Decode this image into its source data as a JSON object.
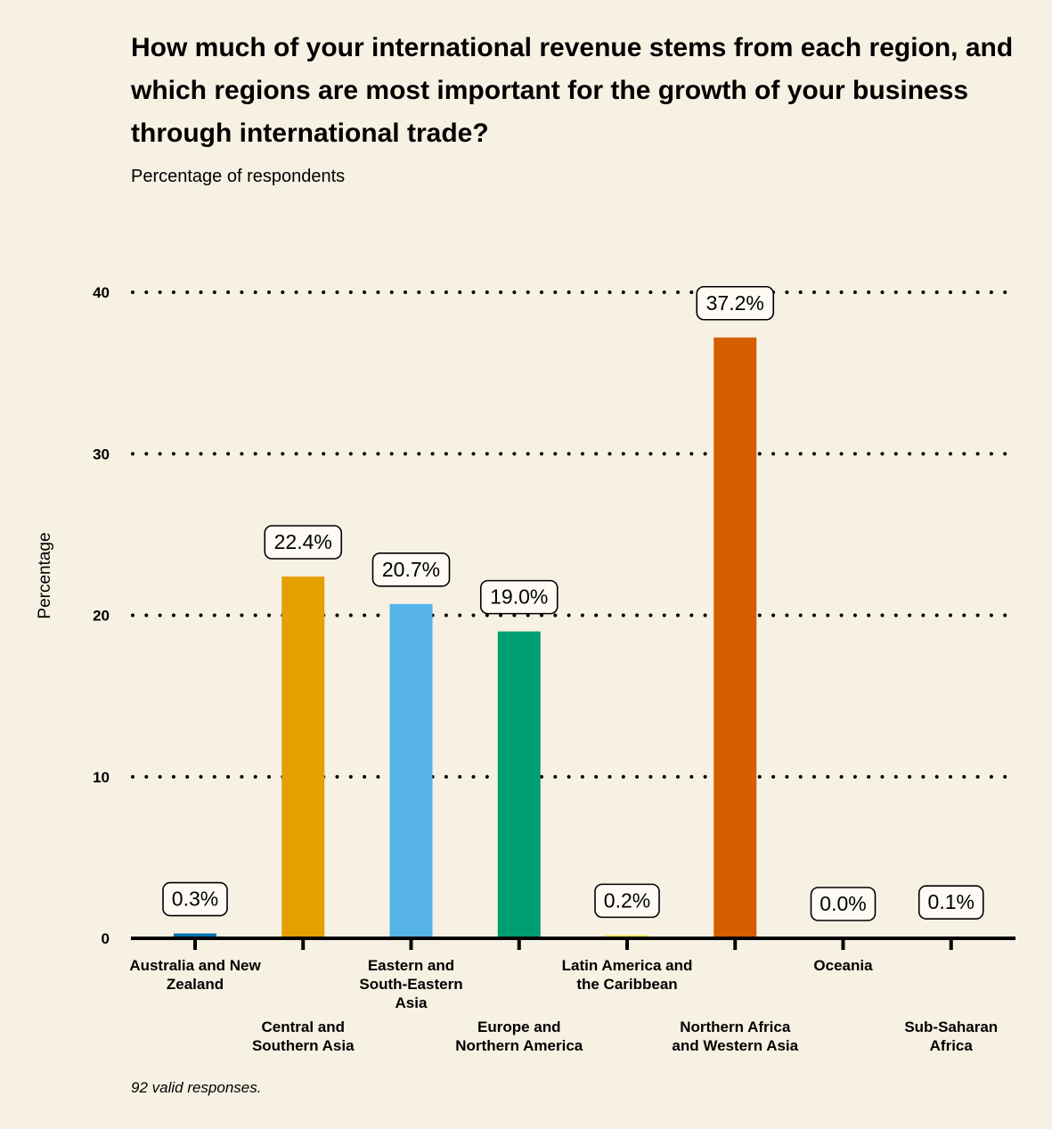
{
  "chart_data": {
    "type": "bar",
    "title": "How much of your international revenue stems from each region, and which regions are most important for the growth of your business through international trade?",
    "subtitle": "Percentage of respondents",
    "ylabel": "Percentage",
    "xlabel": "",
    "ylim": [
      0,
      40
    ],
    "yticks": [
      0,
      10,
      20,
      30,
      40
    ],
    "ytick_labels": [
      "0",
      "10",
      "20",
      "30",
      "40"
    ],
    "grid": "horizontal dotted",
    "categories": [
      "Australia and New Zealand",
      "Central and Southern Asia",
      "Eastern and South-Eastern Asia",
      "Europe and Northern America",
      "Latin America and the Caribbean",
      "Northern Africa and Western Asia",
      "Oceania",
      "Sub-Saharan Africa"
    ],
    "category_label_lines": [
      [
        "Australia and New",
        "Zealand"
      ],
      [
        "Central and",
        "Southern Asia"
      ],
      [
        "Eastern and",
        "South-Eastern",
        "Asia"
      ],
      [
        "Europe and",
        "Northern America"
      ],
      [
        "Latin America and",
        "the Caribbean"
      ],
      [
        "Northern Africa",
        "and Western Asia"
      ],
      [
        "Oceania"
      ],
      [
        "Sub-Saharan",
        "Africa"
      ]
    ],
    "values": [
      0.3,
      22.4,
      20.7,
      19.0,
      0.2,
      37.2,
      0.0,
      0.1
    ],
    "data_labels": [
      "0.3%",
      "22.4%",
      "20.7%",
      "19.0%",
      "0.2%",
      "37.2%",
      "0.0%",
      "0.1%"
    ],
    "colors": [
      "#0072b2",
      "#e69f00",
      "#56b4e9",
      "#009e73",
      "#f0e442",
      "#d55e00",
      "#cc79a7",
      "#999999"
    ],
    "footnote": "92 valid responses."
  }
}
